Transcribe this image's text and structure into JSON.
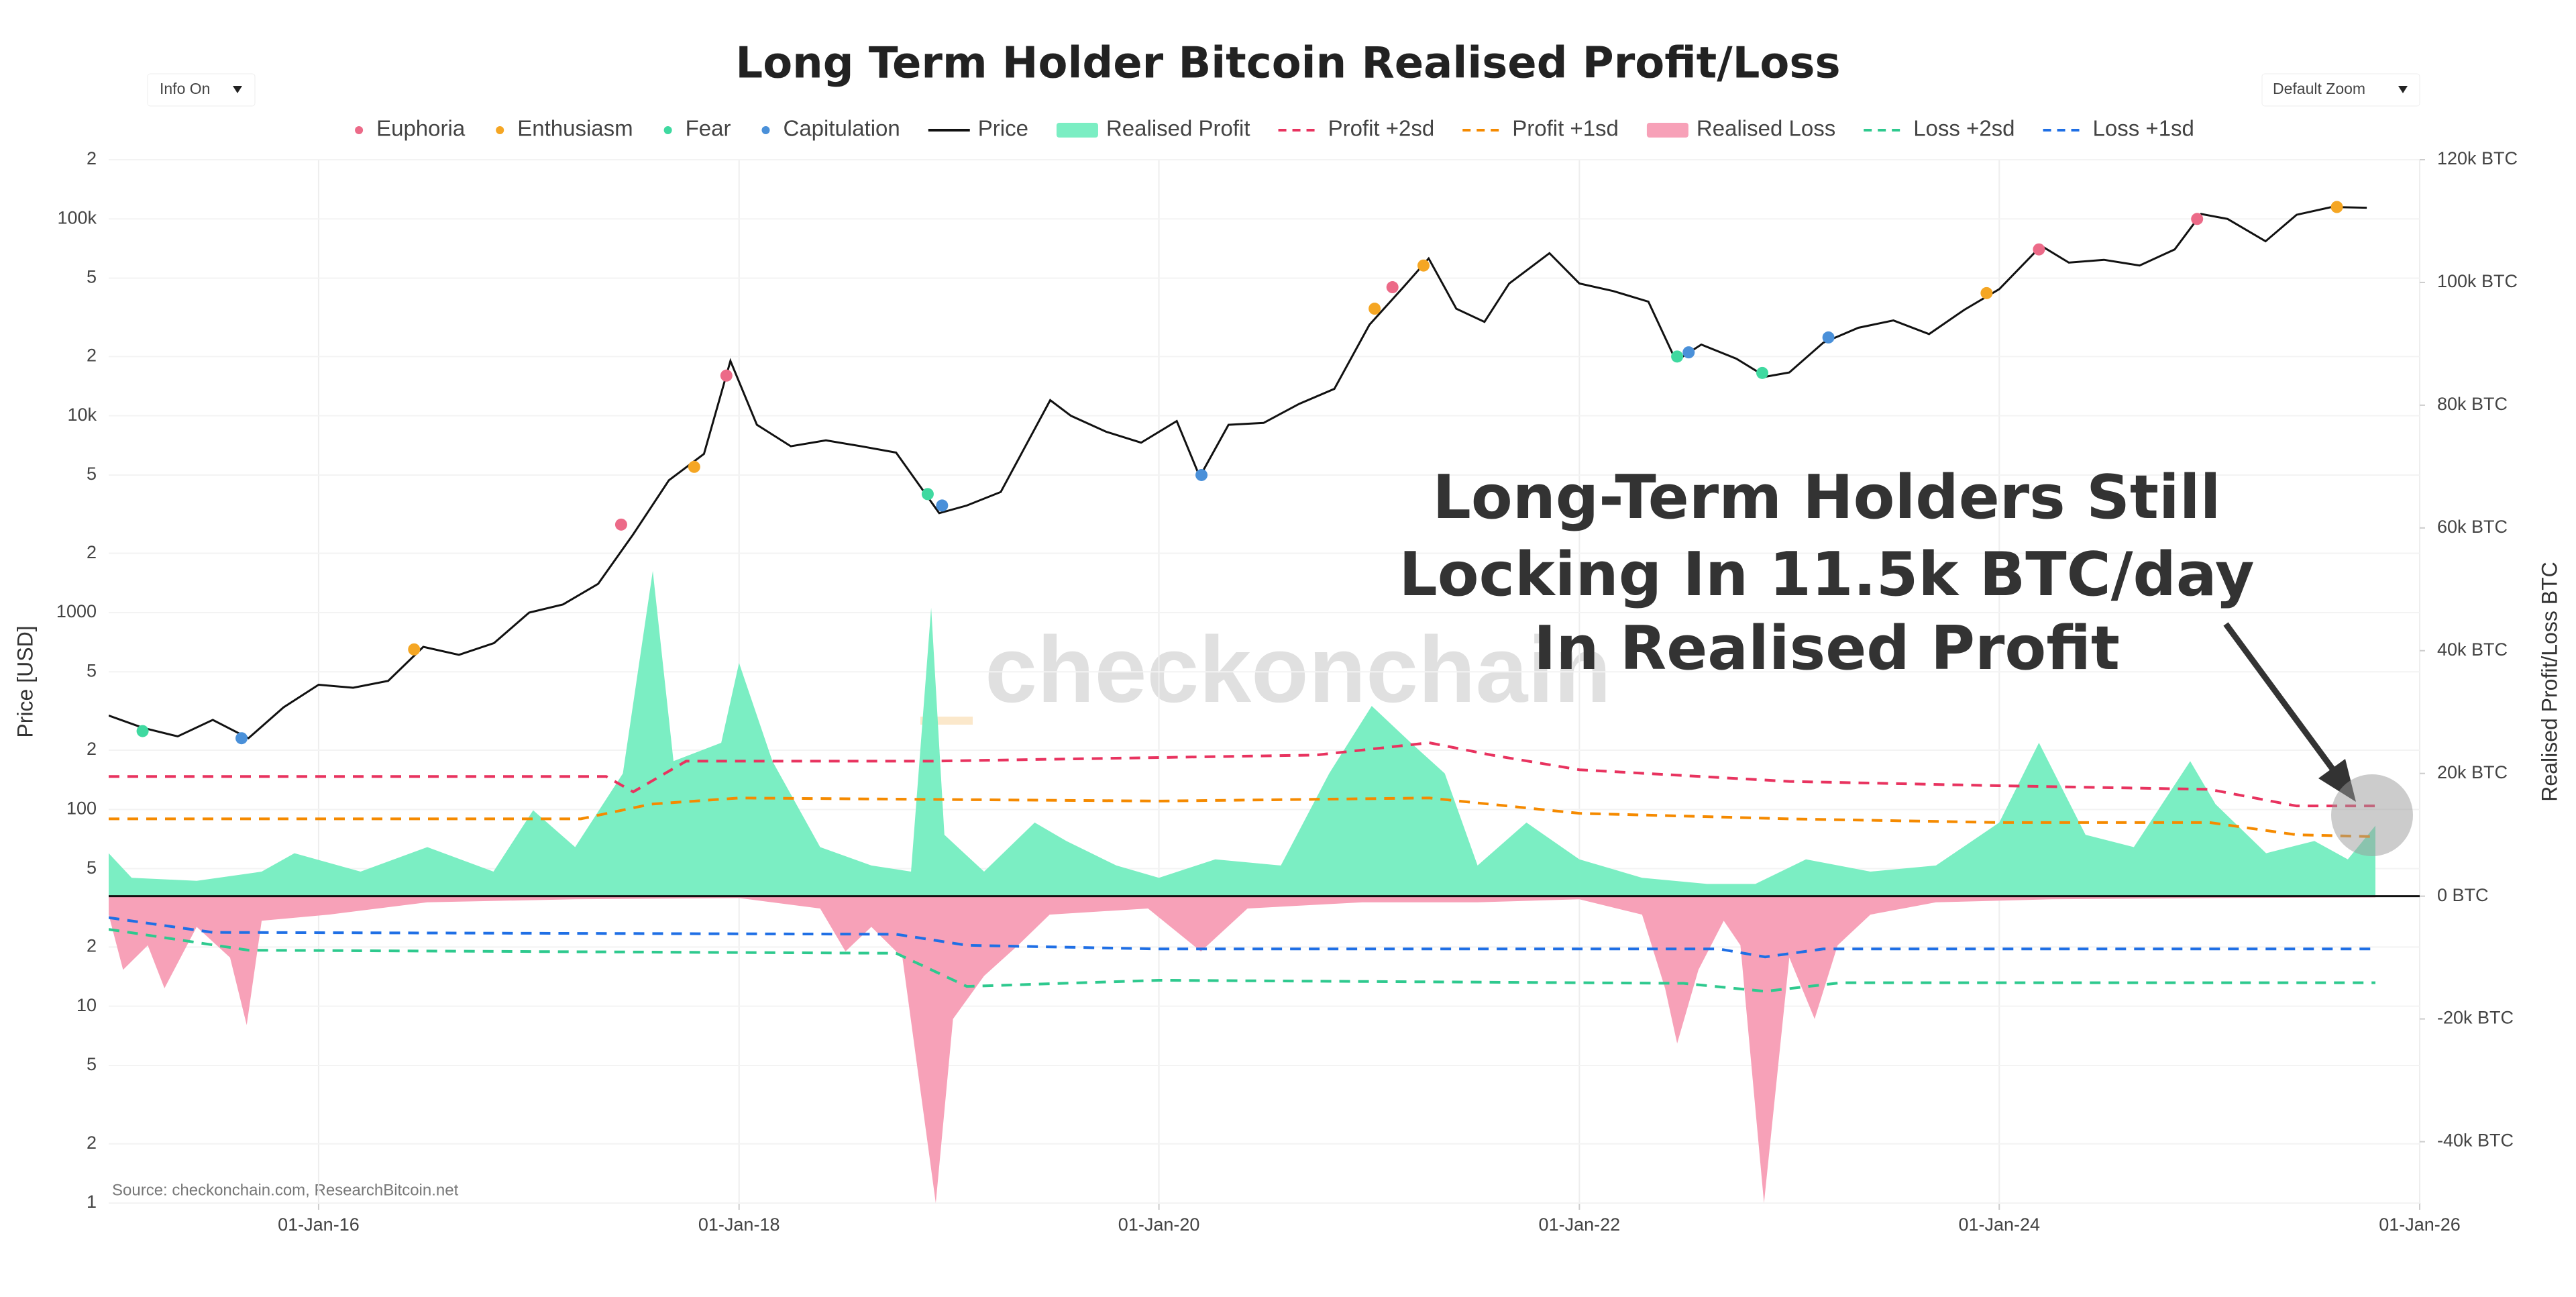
{
  "chart_data": {
    "type": "line",
    "title": "Long Term Holder Bitcoin Realised Profit/Loss",
    "buttons": [
      "Info On",
      "Default Zoom"
    ],
    "y_label": "Price [USD]",
    "y2_label": "Realised Profit/Loss BTC",
    "watermark": "checkonchain",
    "source": "Source: checkonchain.com, ResearchBitcoin.net",
    "annotation": [
      "Long-Term Holders Still",
      "Locking In 11.5k BTC/day",
      "In Realised Profit"
    ],
    "xlim": [
      "2015-01-01",
      "2026-01-01"
    ],
    "xticks": [
      {
        "value": "2016-01-01",
        "label": "01-Jan-16"
      },
      {
        "value": "2018-01-01",
        "label": "01-Jan-18"
      },
      {
        "value": "2020-01-01",
        "label": "01-Jan-20"
      },
      {
        "value": "2022-01-01",
        "label": "01-Jan-22"
      },
      {
        "value": "2024-01-01",
        "label": "01-Jan-24"
      },
      {
        "value": "2026-01-01",
        "label": "01-Jan-26"
      }
    ],
    "ylog": true,
    "ylim": [
      1,
      200000
    ],
    "yticks": [
      1,
      2,
      5,
      10,
      {
        "value": 20,
        "label": "2"
      },
      {
        "value": 50,
        "label": "5"
      },
      100,
      {
        "value": 200,
        "label": "2"
      },
      {
        "value": 500,
        "label": "5"
      },
      1000,
      {
        "value": 2000,
        "label": "2"
      },
      {
        "value": 5000,
        "label": "5"
      },
      {
        "value": 10000,
        "label": "10k"
      },
      {
        "value": 20000,
        "label": "2"
      },
      {
        "value": 50000,
        "label": "5"
      },
      {
        "value": 100000,
        "label": "100k"
      },
      {
        "value": 200000,
        "label": "2"
      }
    ],
    "y2lim": [
      -50000,
      120000
    ],
    "y2ticks": [
      {
        "value": -40000,
        "label": "-40k BTC"
      },
      {
        "value": -20000,
        "label": "-20k BTC"
      },
      {
        "value": 0,
        "label": "0 BTC"
      },
      {
        "value": 20000,
        "label": "20k BTC"
      },
      {
        "value": 40000,
        "label": "40k BTC"
      },
      {
        "value": 60000,
        "label": "60k BTC"
      },
      {
        "value": 80000,
        "label": "80k BTC"
      },
      {
        "value": 100000,
        "label": "100k BTC"
      },
      {
        "value": 120000,
        "label": "120k BTC"
      }
    ],
    "grid": true,
    "series": [
      {
        "name": "Euphoria",
        "mark": "dot",
        "color": "#ec6a88",
        "x": [
          "2017-06-10",
          "2017-12-10",
          "2021-02-10",
          "2024-03-10",
          "2024-12-10"
        ],
        "values": [
          2800,
          16000,
          45000,
          70000,
          100000
        ]
      },
      {
        "name": "Enthusiasm",
        "mark": "dot",
        "color": "#f5a623",
        "x": [
          "2016-06-15",
          "2017-10-15",
          "2021-01-10",
          "2021-04-05",
          "2023-12-10",
          "2025-08-10"
        ],
        "values": [
          650,
          5500,
          35000,
          58000,
          42000,
          115000
        ]
      },
      {
        "name": "Fear",
        "mark": "dot",
        "color": "#3fd9a0",
        "x": [
          "2015-03-01",
          "2018-11-25",
          "2022-06-20",
          "2022-11-15"
        ],
        "values": [
          250,
          4000,
          20000,
          16500
        ]
      },
      {
        "name": "Capitulation",
        "mark": "dot",
        "color": "#4a90d9",
        "x": [
          "2015-08-20",
          "2018-12-20",
          "2020-03-15",
          "2022-07-10",
          "2023-03-10"
        ],
        "values": [
          230,
          3500,
          5000,
          21000,
          25000
        ]
      },
      {
        "name": "Price",
        "mark": "line",
        "color": "#111111",
        "x": [
          "2015-01-01",
          "2015-03-01",
          "2015-05-01",
          "2015-07-01",
          "2015-09-01",
          "2015-11-01",
          "2016-01-01",
          "2016-03-01",
          "2016-05-01",
          "2016-07-01",
          "2016-09-01",
          "2016-11-01",
          "2017-01-01",
          "2017-03-01",
          "2017-05-01",
          "2017-07-01",
          "2017-09-01",
          "2017-11-01",
          "2017-12-17",
          "2018-02-01",
          "2018-04-01",
          "2018-06-01",
          "2018-08-01",
          "2018-10-01",
          "2018-12-15",
          "2019-02-01",
          "2019-04-01",
          "2019-06-26",
          "2019-08-01",
          "2019-10-01",
          "2019-12-01",
          "2020-02-01",
          "2020-03-12",
          "2020-05-01",
          "2020-07-01",
          "2020-09-01",
          "2020-11-01",
          "2021-01-01",
          "2021-03-01",
          "2021-04-14",
          "2021-06-01",
          "2021-07-20",
          "2021-09-01",
          "2021-11-10",
          "2022-01-01",
          "2022-03-01",
          "2022-05-01",
          "2022-06-18",
          "2022-08-01",
          "2022-10-01",
          "2022-11-21",
          "2023-01-01",
          "2023-03-01",
          "2023-05-01",
          "2023-07-01",
          "2023-09-01",
          "2023-11-01",
          "2024-01-01",
          "2024-03-14",
          "2024-05-01",
          "2024-07-01",
          "2024-09-01",
          "2024-11-01",
          "2024-12-17",
          "2025-02-01",
          "2025-04-08",
          "2025-06-01",
          "2025-08-01",
          "2025-10-01"
        ],
        "values": [
          300,
          260,
          235,
          285,
          230,
          330,
          430,
          415,
          450,
          670,
          610,
          700,
          1000,
          1100,
          1400,
          2500,
          4700,
          6400,
          19000,
          9000,
          7000,
          7500,
          7000,
          6500,
          3200,
          3500,
          4100,
          12000,
          10000,
          8300,
          7300,
          9400,
          4900,
          9000,
          9200,
          11500,
          13700,
          29000,
          45000,
          63000,
          35000,
          30000,
          47000,
          67000,
          47000,
          43000,
          38000,
          19000,
          23000,
          19500,
          15800,
          16600,
          23500,
          28000,
          30500,
          26000,
          34500,
          44000,
          73000,
          60000,
          62000,
          58000,
          70000,
          106000,
          100000,
          77000,
          105000,
          115000,
          114000
        ]
      },
      {
        "name": "Realised Profit",
        "mark": "area",
        "axis": "y2",
        "color": "#7beec3",
        "x": [
          "2015-01-01",
          "2015-02-10",
          "2015-06-03",
          "2015-09-24",
          "2015-11-20",
          "2016-03-14",
          "2016-07-08",
          "2016-10-31",
          "2017-01-08",
          "2017-03-22",
          "2017-06-13",
          "2017-08-04",
          "2017-09-09",
          "2017-12-01",
          "2018-01-01",
          "2018-02-28",
          "2018-05-22",
          "2018-08-19",
          "2018-10-27",
          "2018-12-01",
          "2018-12-24",
          "2019-03-03",
          "2019-05-30",
          "2019-07-24",
          "2019-10-19",
          "2020-01-01",
          "2020-04-08",
          "2020-07-31",
          "2020-10-23",
          "2021-01-05",
          "2021-03-14",
          "2021-05-12",
          "2021-07-08",
          "2021-10-01",
          "2022-01-01",
          "2022-04-20",
          "2022-08-11",
          "2022-11-03",
          "2023-01-30",
          "2023-05-22",
          "2023-09-13",
          "2024-01-01",
          "2024-03-10",
          "2024-05-30",
          "2024-08-22",
          "2024-11-28",
          "2025-01-11",
          "2025-04-09",
          "2025-07-02",
          "2025-08-29",
          "2025-10-16"
        ],
        "values": [
          7000,
          3000,
          2500,
          4000,
          7000,
          4000,
          8000,
          4000,
          14000,
          8000,
          20000,
          53000,
          22000,
          25000,
          38000,
          22000,
          8000,
          5000,
          4000,
          47000,
          10000,
          4000,
          12000,
          9000,
          5000,
          3000,
          6000,
          5000,
          20000,
          31000,
          25000,
          20000,
          5000,
          12000,
          6000,
          3000,
          2000,
          2000,
          6000,
          4000,
          5000,
          12000,
          25000,
          10000,
          8000,
          22000,
          15000,
          7000,
          9000,
          6000,
          11500
        ]
      },
      {
        "name": "Profit +2sd",
        "mark": "dash",
        "axis": "y2",
        "color": "#e8335f",
        "x": [
          "2015-01-01",
          "2017-05-15",
          "2017-07-01",
          "2017-10-01",
          "2018-12-01",
          "2020-10-01",
          "2021-04-15",
          "2021-08-01",
          "2022-01-01",
          "2023-01-01",
          "2024-01-01",
          "2025-01-01",
          "2025-06-01",
          "2025-10-16"
        ],
        "values": [
          19500,
          19500,
          17000,
          22000,
          22000,
          23000,
          25000,
          23000,
          20600,
          18700,
          18000,
          17400,
          14700,
          14700
        ]
      },
      {
        "name": "Profit +1sd",
        "mark": "dash",
        "axis": "y2",
        "color": "#f58a00",
        "x": [
          "2015-01-01",
          "2017-04-01",
          "2017-08-01",
          "2018-01-01",
          "2020-01-01",
          "2021-04-15",
          "2022-01-01",
          "2023-01-01",
          "2024-01-01",
          "2025-01-01",
          "2025-06-01",
          "2025-10-16"
        ],
        "values": [
          12600,
          12600,
          15000,
          16000,
          15500,
          16000,
          13500,
          12600,
          12000,
          12000,
          10000,
          9700
        ]
      },
      {
        "name": "Realised Loss",
        "mark": "area",
        "axis": "y2",
        "color": "#f7a1b8",
        "x": [
          "2015-01-01",
          "2015-01-26",
          "2015-03-10",
          "2015-04-08",
          "2015-06-03",
          "2015-07-31",
          "2015-08-29",
          "2015-09-24",
          "2016-01-19",
          "2016-07-08",
          "2017-03-22",
          "2018-01-01",
          "2018-05-22",
          "2018-07-05",
          "2018-08-19",
          "2018-10-12",
          "2018-12-09",
          "2019-01-08",
          "2019-03-03",
          "2019-05-01",
          "2019-06-25",
          "2019-12-13",
          "2020-03-14",
          "2020-06-03",
          "2020-12-20",
          "2021-07-08",
          "2022-01-01",
          "2022-04-20",
          "2022-05-30",
          "2022-06-20",
          "2022-07-27",
          "2022-09-09",
          "2022-10-08",
          "2022-11-18",
          "2023-01-01",
          "2023-02-14",
          "2023-03-26",
          "2023-05-22",
          "2023-09-13",
          "2024-04-01",
          "2025-01-11",
          "2025-10-16"
        ],
        "values": [
          -3000,
          -12000,
          -8000,
          -15000,
          -5000,
          -10000,
          -21000,
          -4000,
          -3000,
          -1000,
          -500,
          -300,
          -2000,
          -9000,
          -5000,
          -10000,
          -50000,
          -20000,
          -13000,
          -8000,
          -3000,
          -2000,
          -9000,
          -2000,
          -1000,
          -1000,
          -500,
          -3000,
          -15000,
          -24000,
          -12000,
          -4000,
          -8000,
          -50000,
          -10000,
          -20000,
          -8000,
          -3000,
          -1000,
          -500,
          -300,
          -200
        ]
      },
      {
        "name": "Loss +2sd",
        "mark": "dash",
        "axis": "y2",
        "color": "#2ec98e",
        "x": [
          "2015-01-01",
          "2015-09-01",
          "2018-10-01",
          "2019-02-01",
          "2020-01-01",
          "2022-07-01",
          "2022-11-20",
          "2023-04-01",
          "2025-10-16"
        ],
        "values": [
          -5400,
          -8800,
          -9300,
          -14700,
          -13700,
          -14200,
          -15500,
          -14100,
          -14100
        ]
      },
      {
        "name": "Loss +1sd",
        "mark": "dash",
        "axis": "y2",
        "color": "#1f6fe5",
        "x": [
          "2015-01-01",
          "2015-07-01",
          "2018-10-01",
          "2019-02-01",
          "2020-01-01",
          "2022-09-01",
          "2022-11-20",
          "2023-03-01",
          "2025-10-16"
        ],
        "values": [
          -3500,
          -5900,
          -6200,
          -8000,
          -8600,
          -8600,
          -9900,
          -8600,
          -8600
        ]
      }
    ]
  }
}
